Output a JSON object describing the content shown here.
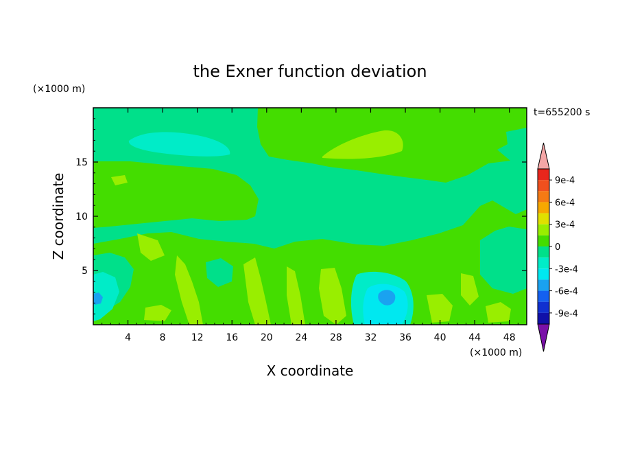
{
  "chart_data": {
    "type": "heatmap",
    "title": "the Exner function deviation",
    "xlabel": "X coordinate",
    "ylabel": "Z coordinate",
    "x_unit": "(×1000 m)",
    "y_unit": "(×1000 m)",
    "time_label": "t=655200 s",
    "xlim": [
      0,
      50
    ],
    "ylim": [
      0,
      20
    ],
    "x_ticks": [
      4,
      8,
      12,
      16,
      20,
      24,
      28,
      32,
      36,
      40,
      44,
      48
    ],
    "y_ticks": [
      5,
      10,
      15
    ],
    "colorbar": {
      "labels": [
        "9e-4",
        "6e-4",
        "3e-4",
        "0",
        "-3e-4",
        "-6e-4",
        "-9e-4"
      ],
      "label_values": [
        0.0009,
        0.0006,
        0.0003,
        0,
        -0.0003,
        -0.0006,
        -0.0009
      ],
      "levels_top_to_bottom": [
        {
          "lo": 0.00105,
          "hi": null,
          "color": "#f4a6a6"
        },
        {
          "lo": 0.0009,
          "hi": 0.00105,
          "color": "#e8261c"
        },
        {
          "lo": 0.00075,
          "hi": 0.0009,
          "color": "#f0501e"
        },
        {
          "lo": 0.0006,
          "hi": 0.00075,
          "color": "#f57a14"
        },
        {
          "lo": 0.00045,
          "hi": 0.0006,
          "color": "#f7a800"
        },
        {
          "lo": 0.0003,
          "hi": 0.00045,
          "color": "#e0e000"
        },
        {
          "lo": 0.00015,
          "hi": 0.0003,
          "color": "#99ee00"
        },
        {
          "lo": 0.0,
          "hi": 0.00015,
          "color": "#44dd00"
        },
        {
          "lo": -0.00015,
          "hi": 0.0,
          "color": "#00e08a"
        },
        {
          "lo": -0.0003,
          "hi": -0.00015,
          "color": "#00ecc8"
        },
        {
          "lo": -0.00045,
          "hi": -0.0003,
          "color": "#00e8f0"
        },
        {
          "lo": -0.0006,
          "hi": -0.00045,
          "color": "#1aa2f0"
        },
        {
          "lo": -0.00075,
          "hi": -0.0006,
          "color": "#1460f0"
        },
        {
          "lo": -0.0009,
          "hi": -0.00075,
          "color": "#1030d0"
        },
        {
          "lo": -0.00105,
          "hi": -0.0009,
          "color": "#1010a8"
        },
        {
          "lo": null,
          "hi": -0.00105,
          "color": "#7a10a8"
        }
      ]
    },
    "regions": [
      {
        "level": "0 to 1.5e-4",
        "x": [
          0,
          50
        ],
        "z": [
          12,
          20
        ]
      },
      {
        "level": "-1.5e-4 to 0",
        "x": [
          0,
          18
        ],
        "z": [
          15,
          20
        ]
      },
      {
        "level": "-1.5e-4 to 0",
        "x": [
          18,
          50
        ],
        "z": [
          8,
          14
        ]
      },
      {
        "level": "-3e-4 to -1.5e-4",
        "x": [
          4,
          16
        ],
        "z": [
          15.8,
          17.8
        ]
      },
      {
        "level": "1.5e-4 to 3e-4",
        "x": [
          26,
          36
        ],
        "z": [
          15,
          17.6
        ]
      },
      {
        "level": "-3e-4 to -1.5e-4",
        "x": [
          31,
          36
        ],
        "z": [
          0,
          5
        ]
      },
      {
        "level": "-4.5e-4 to -3e-4",
        "x": [
          32.5,
          34.5
        ],
        "z": [
          1.8,
          3.2
        ]
      },
      {
        "level": "-4.5e-4 to -3e-4",
        "x": [
          0,
          0.8
        ],
        "z": [
          2,
          3
        ]
      },
      {
        "level": "-3e-4 to -1.5e-4",
        "x": [
          44,
          49
        ],
        "z": [
          3,
          8
        ]
      }
    ]
  }
}
